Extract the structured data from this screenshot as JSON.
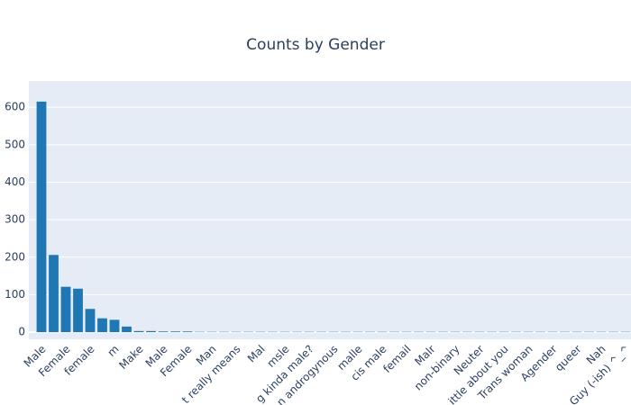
{
  "chart_data": {
    "type": "bar",
    "title": "Counts by Gender",
    "categories": [
      "Male",
      null,
      "Female",
      null,
      "female",
      null,
      "m",
      null,
      "Make",
      null,
      "Male",
      null,
      "Female",
      null,
      "Man",
      null,
      "t really means",
      null,
      "Mal",
      null,
      "msle",
      null,
      "g kinda male?",
      null,
      "n androgynous",
      null,
      "malle",
      null,
      "cis male",
      null,
      "femail",
      null,
      "Malr",
      null,
      "non-binary",
      null,
      "Neuter",
      null,
      "ittle about you",
      null,
      "Trans woman",
      null,
      "Agender",
      null,
      "queer",
      null,
      "Nah",
      null,
      "Guy (-ish) ^_^"
    ],
    "values": [
      615,
      206,
      121,
      116,
      62,
      37,
      33,
      15,
      3,
      3,
      2,
      2,
      2,
      1,
      1,
      1,
      1,
      1,
      1,
      1,
      1,
      1,
      1,
      1,
      1,
      1,
      1,
      1,
      1,
      1,
      1,
      1,
      1,
      1,
      1,
      1,
      1,
      1,
      1,
      1,
      1,
      1,
      1,
      1,
      1,
      1,
      1,
      1,
      1
    ],
    "color": "#1f77b4",
    "ylim": [
      -19,
      670
    ],
    "yticks": [
      0,
      100,
      200,
      300,
      400,
      500,
      600
    ],
    "grid": true
  }
}
